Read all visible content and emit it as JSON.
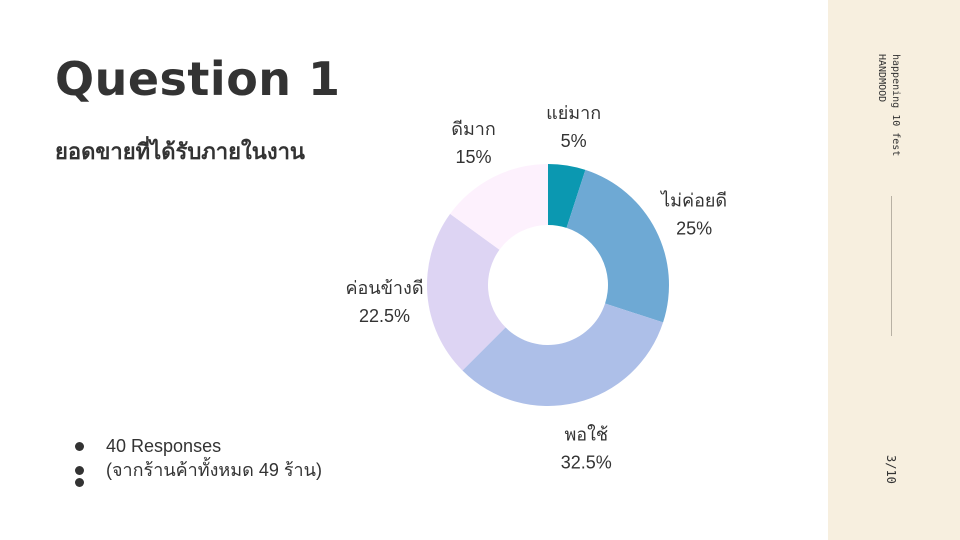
{
  "slide": {
    "title": "Question 1",
    "subtitle": "ยอดขายที่ได้รับภายในงาน",
    "bullets": [
      "40 Responses",
      "(จากร้านค้าทั้งหมด 49 ร้าน)"
    ],
    "sidebar": {
      "brand_line1": "happening 10 fest",
      "brand_line2": "HANDMOOD",
      "page": "3/10"
    }
  },
  "chart_data": {
    "type": "pie",
    "donut": true,
    "categories": [
      "แย่มาก",
      "ไม่ค่อยดี",
      "พอใช้",
      "ค่อนข้างดี",
      "ดีมาก"
    ],
    "values": [
      5,
      25,
      32.5,
      22.5,
      15
    ],
    "value_labels": [
      "5%",
      "25%",
      "32.5%",
      "22.5%",
      "15%"
    ],
    "colors": [
      "#0b98b1",
      "#6ea9d4",
      "#adbfe8",
      "#ddd4f3",
      "#fdf1fd"
    ],
    "legend": "none"
  }
}
